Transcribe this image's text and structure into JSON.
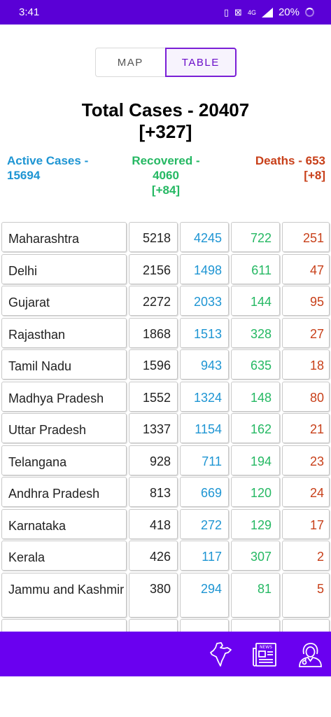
{
  "status_bar": {
    "time": "3:41",
    "network": "4G",
    "battery": "20%"
  },
  "tabs": {
    "map": "MAP",
    "table": "TABLE"
  },
  "summary": {
    "total_line1": "Total Cases - 20407",
    "total_line2": "[+327]",
    "active_line1": "Active Cases -",
    "active_line2": "15694",
    "recovered_line1": "Recovered -",
    "recovered_line2": "4060",
    "recovered_line3": "[+84]",
    "deaths_line1": "Deaths - 653",
    "deaths_line2": "[+8]"
  },
  "table": {
    "rows": [
      {
        "state": "Maharashtra",
        "total": "5218",
        "active": "4245",
        "recovered": "722",
        "deaths": "251"
      },
      {
        "state": "Delhi",
        "total": "2156",
        "active": "1498",
        "recovered": "611",
        "deaths": "47"
      },
      {
        "state": "Gujarat",
        "total": "2272",
        "active": "2033",
        "recovered": "144",
        "deaths": "95"
      },
      {
        "state": "Rajasthan",
        "total": "1868",
        "active": "1513",
        "recovered": "328",
        "deaths": "27"
      },
      {
        "state": "Tamil Nadu",
        "total": "1596",
        "active": "943",
        "recovered": "635",
        "deaths": "18"
      },
      {
        "state": "Madhya Pradesh",
        "total": "1552",
        "active": "1324",
        "recovered": "148",
        "deaths": "80"
      },
      {
        "state": "Uttar Pradesh",
        "total": "1337",
        "active": "1154",
        "recovered": "162",
        "deaths": "21"
      },
      {
        "state": "Telangana",
        "total": "928",
        "active": "711",
        "recovered": "194",
        "deaths": "23"
      },
      {
        "state": "Andhra Pradesh",
        "total": "813",
        "active": "669",
        "recovered": "120",
        "deaths": "24"
      },
      {
        "state": "Karnataka",
        "total": "418",
        "active": "272",
        "recovered": "129",
        "deaths": "17"
      },
      {
        "state": "Kerala",
        "total": "426",
        "active": "117",
        "recovered": "307",
        "deaths": "2"
      },
      {
        "state": "Jammu and Kashmir",
        "total": "380",
        "active": "294",
        "recovered": "81",
        "deaths": "5"
      },
      {
        "state": "",
        "total": "",
        "active": "",
        "recovered": "",
        "deaths": ""
      }
    ]
  },
  "bottom_nav": {
    "icons": [
      "india-map-icon",
      "newspaper-icon",
      "doctor-icon"
    ]
  },
  "colors": {
    "accent": "#5a00d6",
    "active": "#1e95d3",
    "recovered": "#25b863",
    "deaths": "#c8401a"
  }
}
